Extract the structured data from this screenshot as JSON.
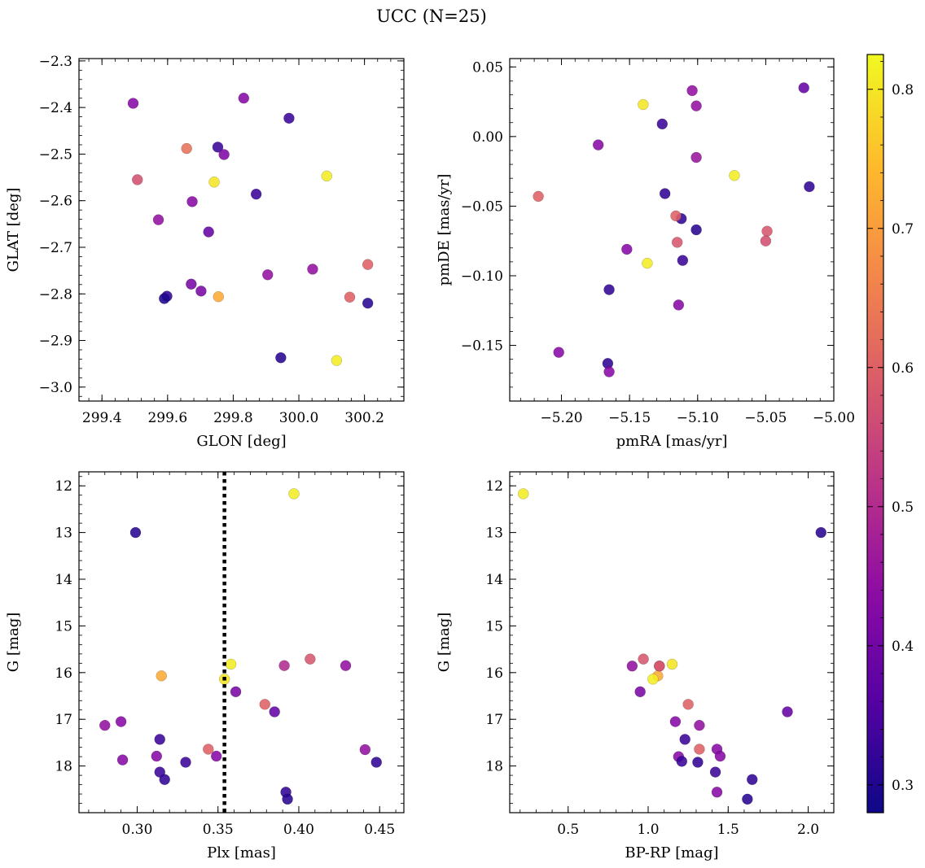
{
  "figure": {
    "title": "UCC (N=25)"
  },
  "colorbar": {
    "colormap": "plasma",
    "range": [
      0.28,
      0.825
    ],
    "ticks": [
      0.3,
      0.4,
      0.5,
      0.6,
      0.7,
      0.8
    ],
    "tick_labels": [
      "0.3",
      "0.4",
      "0.5",
      "0.6",
      "0.7",
      "0.8"
    ]
  },
  "chart_data": [
    {
      "type": "scatter",
      "xlabel": "GLON [deg]",
      "ylabel": "GLAT [deg]",
      "xlim": [
        299.33,
        300.32
      ],
      "ylim": [
        -3.03,
        -2.295
      ],
      "y_inverted": false,
      "xticks": [
        299.4,
        299.6,
        299.8,
        300.0,
        300.2
      ],
      "xtick_labels": [
        "299.4",
        "299.6",
        "299.8",
        "300.0",
        "300.2"
      ],
      "yticks": [
        -3.0,
        -2.9,
        -2.8,
        -2.7,
        -2.6,
        -2.5,
        -2.4,
        -2.3
      ],
      "ytick_labels": [
        "−3.0",
        "−2.9",
        "−2.8",
        "−2.7",
        "−2.6",
        "−2.5",
        "−2.4",
        "−2.3"
      ],
      "x": [
        299.495,
        299.832,
        299.97,
        299.658,
        299.753,
        299.772,
        299.508,
        300.085,
        299.742,
        299.87,
        299.675,
        299.572,
        299.725,
        300.21,
        300.042,
        299.905,
        299.672,
        299.702,
        299.598,
        299.59,
        299.755,
        300.155,
        300.21,
        299.945,
        300.115
      ],
      "y": [
        -2.391,
        -2.38,
        -2.423,
        -2.488,
        -2.485,
        -2.501,
        -2.555,
        -2.547,
        -2.56,
        -2.586,
        -2.602,
        -2.641,
        -2.667,
        -2.737,
        -2.747,
        -2.759,
        -2.779,
        -2.794,
        -2.805,
        -2.81,
        -2.806,
        -2.807,
        -2.82,
        -2.937,
        -2.943
      ],
      "c": [
        0.43,
        0.43,
        0.33,
        0.63,
        0.33,
        0.42,
        0.57,
        0.81,
        0.8,
        0.33,
        0.43,
        0.45,
        0.38,
        0.6,
        0.45,
        0.45,
        0.41,
        0.41,
        0.32,
        0.3,
        0.72,
        0.6,
        0.31,
        0.31,
        0.81
      ]
    },
    {
      "type": "scatter",
      "xlabel": "pmRA [mas/yr]",
      "ylabel": "pmDE [mas/yr]",
      "xlim": [
        -5.238,
        -5.0
      ],
      "ylim": [
        -0.19,
        0.056
      ],
      "y_inverted": false,
      "xticks": [
        -5.2,
        -5.15,
        -5.1,
        -5.05,
        -5.0
      ],
      "xtick_labels": [
        "−5.20",
        "−5.15",
        "−5.10",
        "−5.05",
        "−5.00"
      ],
      "yticks": [
        -0.15,
        -0.1,
        -0.05,
        0.0,
        0.05
      ],
      "ytick_labels": [
        "−0.15",
        "−0.10",
        "−0.05",
        "0.00",
        "0.05"
      ],
      "x": [
        -5.022,
        -5.104,
        -5.14,
        -5.101,
        -5.126,
        -5.173,
        -5.101,
        -5.073,
        -5.018,
        -5.217,
        -5.124,
        -5.112,
        -5.116,
        -5.049,
        -5.101,
        -5.115,
        -5.05,
        -5.152,
        -5.137,
        -5.111,
        -5.165,
        -5.114,
        -5.202,
        -5.166,
        -5.165
      ],
      "y": [
        0.035,
        0.033,
        0.023,
        0.022,
        0.009,
        -0.006,
        -0.015,
        -0.028,
        -0.036,
        -0.043,
        -0.041,
        -0.059,
        -0.057,
        -0.068,
        -0.067,
        -0.076,
        -0.075,
        -0.081,
        -0.091,
        -0.089,
        -0.11,
        -0.121,
        -0.155,
        -0.163,
        -0.169
      ],
      "c": [
        0.38,
        0.45,
        0.8,
        0.45,
        0.33,
        0.43,
        0.46,
        0.81,
        0.32,
        0.6,
        0.32,
        0.32,
        0.6,
        0.58,
        0.31,
        0.58,
        0.57,
        0.43,
        0.81,
        0.33,
        0.32,
        0.43,
        0.43,
        0.32,
        0.43
      ]
    },
    {
      "type": "scatter",
      "xlabel": "Plx [mas]",
      "ylabel": "G [mag]",
      "xlim": [
        0.264,
        0.465
      ],
      "ylim": [
        19.0,
        11.7
      ],
      "y_inverted": true,
      "xticks": [
        0.3,
        0.35,
        0.4,
        0.45
      ],
      "xtick_labels": [
        "0.30",
        "0.35",
        "0.40",
        "0.45"
      ],
      "yticks": [
        12,
        13,
        14,
        15,
        16,
        17,
        18
      ],
      "ytick_labels": [
        "12",
        "13",
        "14",
        "15",
        "16",
        "17",
        "18"
      ],
      "vline": {
        "x": 0.354,
        "style": "dotted"
      },
      "x": [
        0.397,
        0.299,
        0.358,
        0.407,
        0.391,
        0.429,
        0.315,
        0.354,
        0.361,
        0.379,
        0.385,
        0.29,
        0.28,
        0.314,
        0.344,
        0.441,
        0.312,
        0.291,
        0.349,
        0.33,
        0.448,
        0.314,
        0.317,
        0.392,
        0.393
      ],
      "y": [
        12.17,
        13.0,
        15.82,
        15.71,
        15.85,
        15.85,
        16.07,
        16.14,
        16.41,
        16.68,
        16.84,
        17.05,
        17.13,
        17.43,
        17.64,
        17.65,
        17.79,
        17.87,
        17.79,
        17.92,
        17.92,
        18.13,
        18.29,
        18.56,
        18.71
      ],
      "c": [
        0.81,
        0.31,
        0.81,
        0.58,
        0.5,
        0.45,
        0.72,
        0.8,
        0.41,
        0.6,
        0.38,
        0.43,
        0.45,
        0.33,
        0.6,
        0.45,
        0.43,
        0.43,
        0.43,
        0.33,
        0.32,
        0.33,
        0.32,
        0.32,
        0.31
      ]
    },
    {
      "type": "scatter",
      "xlabel": "BP-RP [mag]",
      "ylabel": "G [mag]",
      "xlim": [
        0.135,
        2.16
      ],
      "ylim": [
        19.0,
        11.7
      ],
      "y_inverted": true,
      "xticks": [
        0.5,
        1.0,
        1.5,
        2.0
      ],
      "xtick_labels": [
        "0.5",
        "1.0",
        "1.5",
        "2.0"
      ],
      "yticks": [
        12,
        13,
        14,
        15,
        16,
        17,
        18
      ],
      "ytick_labels": [
        "12",
        "13",
        "14",
        "15",
        "16",
        "17",
        "18"
      ],
      "x": [
        0.22,
        2.08,
        0.97,
        1.15,
        0.9,
        1.07,
        1.06,
        1.03,
        0.95,
        1.25,
        1.87,
        1.17,
        1.32,
        1.23,
        1.43,
        1.32,
        1.45,
        1.19,
        1.21,
        1.31,
        1.42,
        1.65,
        1.43,
        1.62,
        1.07
      ],
      "y": [
        12.17,
        13.0,
        15.71,
        15.82,
        15.86,
        15.86,
        16.07,
        16.14,
        16.41,
        16.68,
        16.84,
        17.05,
        17.13,
        17.43,
        17.64,
        17.64,
        17.79,
        17.8,
        17.9,
        17.92,
        18.13,
        18.29,
        18.56,
        18.71,
        15.86
      ],
      "c": [
        0.81,
        0.31,
        0.58,
        0.8,
        0.45,
        0.58,
        0.72,
        0.81,
        0.41,
        0.6,
        0.38,
        0.43,
        0.45,
        0.33,
        0.43,
        0.6,
        0.43,
        0.43,
        0.33,
        0.32,
        0.33,
        0.32,
        0.43,
        0.31,
        0.58
      ]
    }
  ]
}
